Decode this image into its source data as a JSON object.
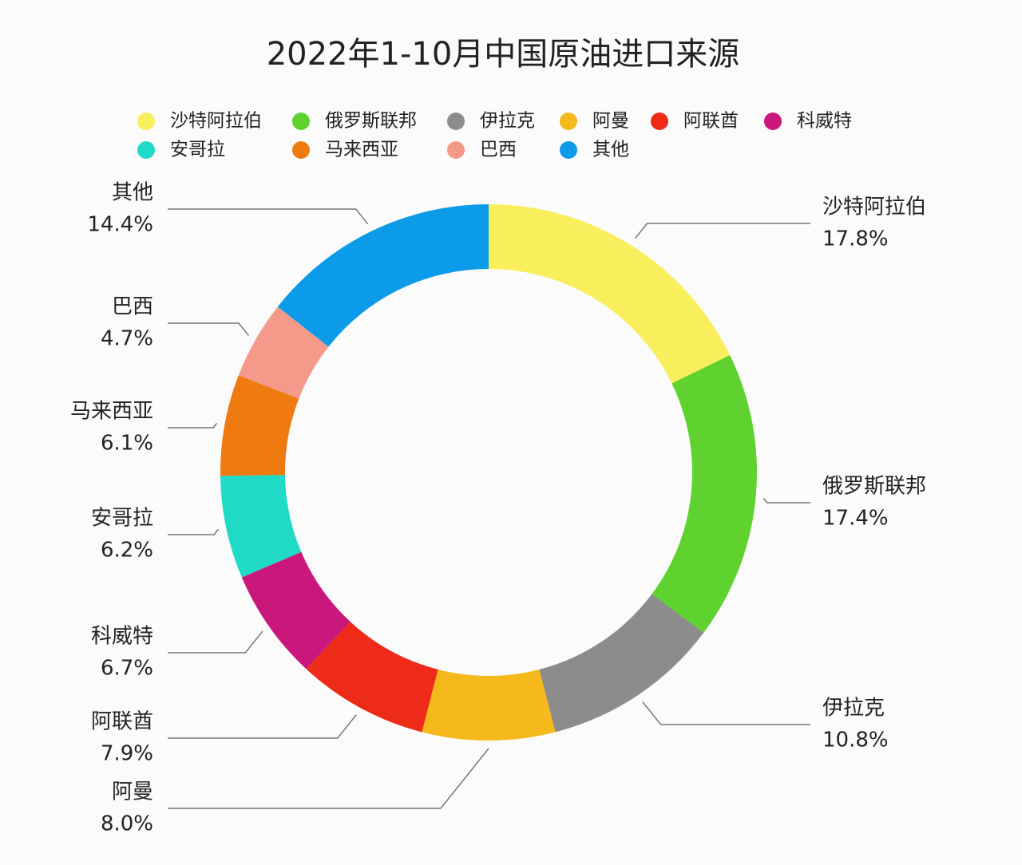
{
  "chart_data": {
    "type": "donut",
    "title": "2022年1-10月中国原油进口来源",
    "categories": [
      "沙特阿拉伯",
      "俄罗斯联邦",
      "伊拉克",
      "阿曼",
      "阿联酋",
      "科威特",
      "安哥拉",
      "马来西亚",
      "巴西",
      "其他"
    ],
    "values": [
      17.8,
      17.4,
      10.8,
      8.0,
      7.9,
      6.7,
      6.2,
      6.1,
      4.7,
      14.4
    ],
    "value_labels": [
      "17.8%",
      "17.4%",
      "10.8%",
      "8.0%",
      "7.9%",
      "6.7%",
      "6.2%",
      "6.1%",
      "4.7%",
      "14.4%"
    ],
    "colors": [
      "#f9ef5c",
      "#5fd22f",
      "#8c8c8c",
      "#f5b91c",
      "#ee2a19",
      "#c9177b",
      "#20dac8",
      "#ee7a10",
      "#f5998b",
      "#0b9be8"
    ],
    "legend": "top"
  }
}
